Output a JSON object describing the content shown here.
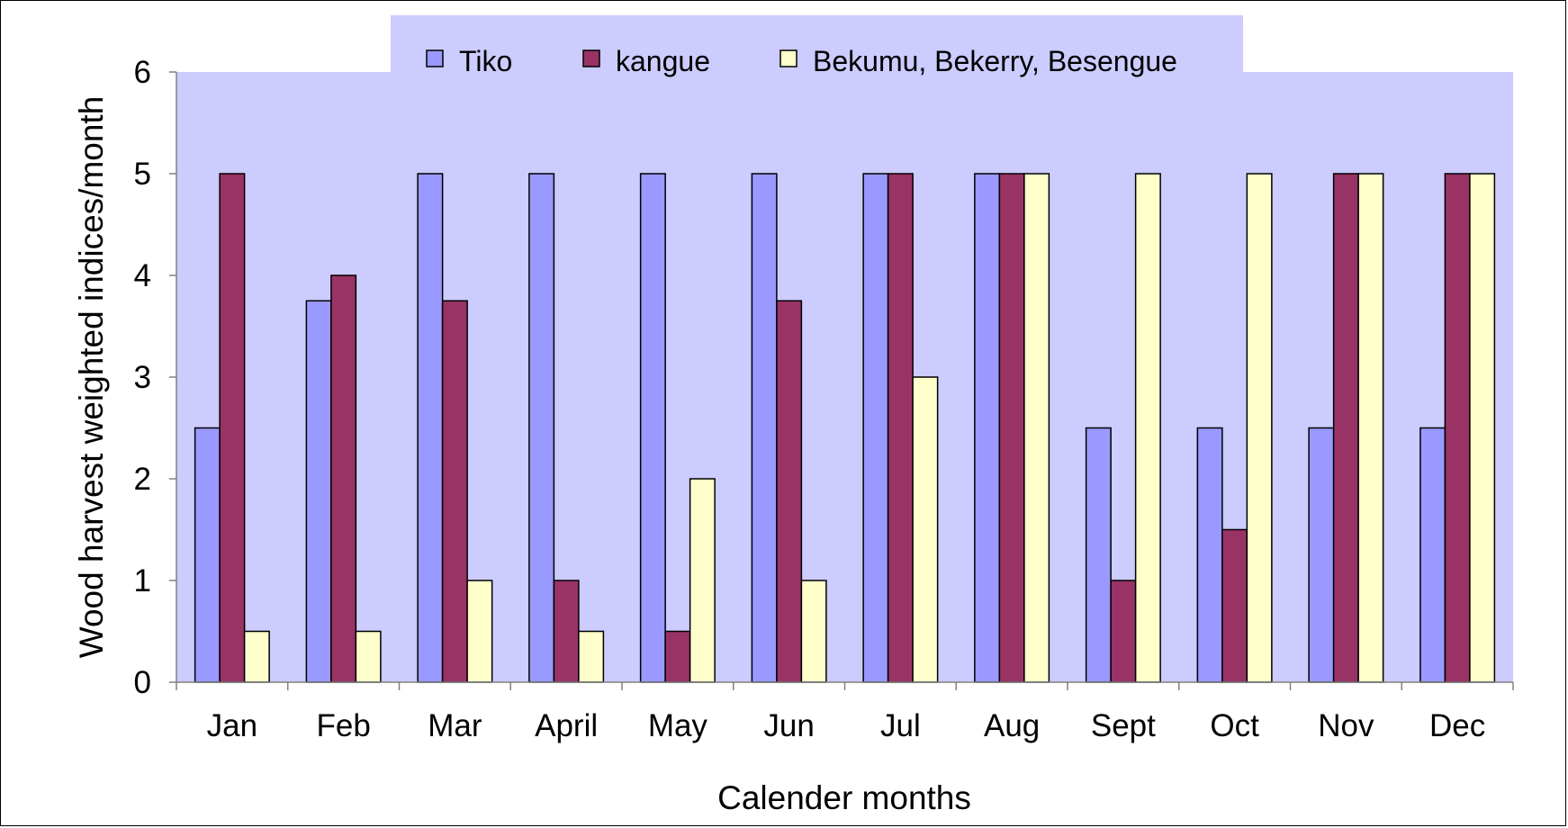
{
  "chart_data": {
    "type": "bar",
    "title": "",
    "xlabel": "Calender months",
    "ylabel": "Wood harvest weighted indices/month",
    "ylim": [
      0,
      6
    ],
    "yticks": [
      "0",
      "1",
      "2",
      "3",
      "4",
      "5",
      "6"
    ],
    "grid": false,
    "legend_position": "top",
    "plot_background": "#CCCCFF",
    "categories": [
      "Jan",
      "Feb",
      "Mar",
      "April",
      "May",
      "Jun",
      "Jul",
      "Aug",
      "Sept",
      "Oct",
      "Nov",
      "Dec"
    ],
    "series": [
      {
        "name": "Tiko",
        "color": "#9999FF",
        "values": [
          2.5,
          3.75,
          5,
          5,
          5,
          5,
          5,
          5,
          2.5,
          2.5,
          2.5,
          2.5
        ]
      },
      {
        "name": "kangue",
        "color": "#993366",
        "values": [
          5,
          4,
          3.75,
          1,
          0.5,
          3.75,
          5,
          5,
          1,
          1.5,
          5,
          5
        ]
      },
      {
        "name": "Bekumu, Bekerry, Besengue",
        "color": "#FFFFCC",
        "values": [
          0.5,
          0.5,
          1,
          0.5,
          2,
          1,
          3,
          5,
          5,
          5,
          5,
          5
        ]
      }
    ]
  }
}
